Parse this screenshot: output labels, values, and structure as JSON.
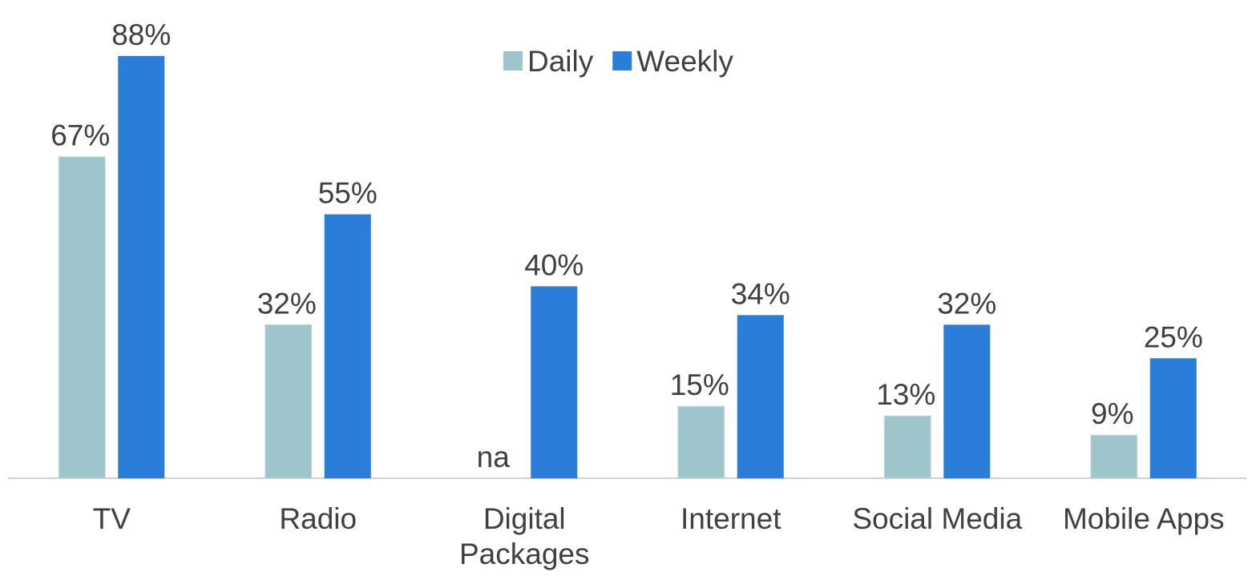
{
  "chart_data": {
    "type": "bar",
    "categories": [
      "TV",
      "Radio",
      "Digital Packages",
      "Internet",
      "Social Media",
      "Mobile Apps"
    ],
    "series": [
      {
        "name": "Daily",
        "color": "#9fc5cc",
        "values": [
          67,
          32,
          null,
          15,
          13,
          9
        ],
        "value_labels": [
          "67%",
          "32%",
          "na",
          "15%",
          "13%",
          "9%"
        ]
      },
      {
        "name": "Weekly",
        "color": "#2a7dd8",
        "values": [
          88,
          55,
          40,
          34,
          32,
          25
        ],
        "value_labels": [
          "88%",
          "55%",
          "40%",
          "34%",
          "32%",
          "25%"
        ]
      }
    ],
    "ylim": [
      0,
      100
    ],
    "legend": "top"
  }
}
